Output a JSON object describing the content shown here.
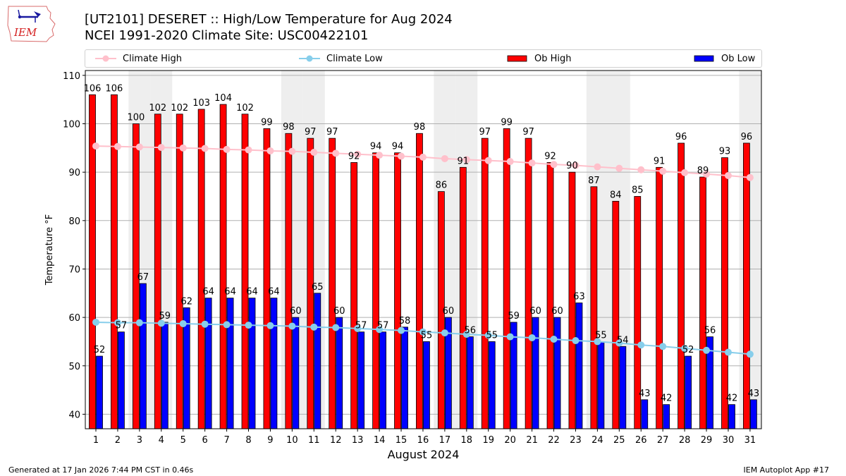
{
  "header": {
    "logo_text": "IEM",
    "title_line1": "[UT2101] DESERET :: High/Low Temperature for Aug 2024",
    "title_line2": "NCEI 1991-2020 Climate Site: USC00422101"
  },
  "footer": {
    "generated": "Generated at 17 Jan 2026 7:44 PM CST in 0.46s",
    "app": "IEM Autoplot App #17"
  },
  "chart_data": {
    "type": "bar",
    "title": "[UT2101] DESERET :: High/Low Temperature for Aug 2024",
    "subtitle": "NCEI 1991-2020 Climate Site: USC00422101",
    "xlabel": "August 2024",
    "ylabel": "Temperature °F",
    "ylim": [
      37,
      111
    ],
    "yticks": [
      40,
      50,
      60,
      70,
      80,
      90,
      100,
      110
    ],
    "grid": "y",
    "legend_position": "top",
    "categories": [
      "1",
      "2",
      "3",
      "4",
      "5",
      "6",
      "7",
      "8",
      "9",
      "10",
      "11",
      "12",
      "13",
      "14",
      "15",
      "16",
      "17",
      "18",
      "19",
      "20",
      "21",
      "22",
      "23",
      "24",
      "25",
      "26",
      "27",
      "28",
      "29",
      "30",
      "31"
    ],
    "weekend_days": [
      3,
      4,
      10,
      11,
      17,
      18,
      24,
      25,
      31
    ],
    "weekend_shade_color": "#eeeeee",
    "series": [
      {
        "name": "Climate High",
        "type": "line",
        "color": "#ffc0cb",
        "values": [
          95.4,
          95.3,
          95.2,
          95.1,
          95.0,
          94.9,
          94.7,
          94.6,
          94.4,
          94.3,
          94.1,
          93.9,
          93.7,
          93.5,
          93.3,
          93.1,
          92.8,
          92.6,
          92.4,
          92.2,
          91.9,
          91.6,
          91.4,
          91.1,
          90.8,
          90.5,
          90.2,
          89.9,
          89.6,
          89.3,
          88.9
        ]
      },
      {
        "name": "Climate Low",
        "type": "line",
        "color": "#87ceeb",
        "values": [
          59.0,
          58.9,
          58.9,
          58.8,
          58.7,
          58.6,
          58.5,
          58.4,
          58.3,
          58.2,
          58.0,
          57.9,
          57.7,
          57.5,
          57.3,
          57.0,
          56.8,
          56.5,
          56.3,
          56.0,
          55.8,
          55.5,
          55.2,
          55.0,
          54.7,
          54.3,
          54.0,
          53.6,
          53.2,
          52.8,
          52.4
        ]
      },
      {
        "name": "Ob High",
        "type": "bar",
        "color": "#ff0000",
        "values": [
          106,
          106,
          100,
          102,
          102,
          103,
          104,
          102,
          99,
          98,
          97,
          97,
          92,
          94,
          94,
          98,
          86,
          91,
          97,
          99,
          97,
          92,
          90,
          87,
          84,
          85,
          91,
          96,
          89,
          93,
          96
        ]
      },
      {
        "name": "Ob Low",
        "type": "bar",
        "color": "#0000ff",
        "values": [
          52,
          57,
          67,
          59,
          62,
          64,
          64,
          64,
          64,
          60,
          65,
          60,
          57,
          57,
          58,
          55,
          60,
          56,
          55,
          59,
          60,
          60,
          63,
          55,
          54,
          43,
          42,
          52,
          56,
          42,
          43
        ]
      }
    ]
  }
}
